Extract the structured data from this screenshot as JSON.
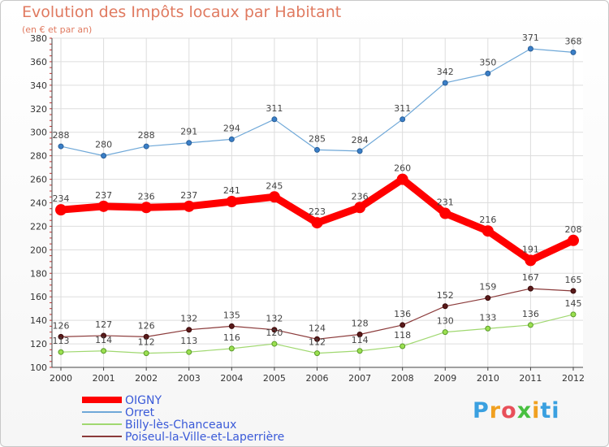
{
  "chart_data": {
    "type": "line",
    "title": "Evolution des Impôts locaux par Habitant",
    "subtitle": "(en € et par an)",
    "xlabel": "",
    "ylabel": "",
    "categories": [
      "2000",
      "2001",
      "2002",
      "2003",
      "2004",
      "2005",
      "2006",
      "2007",
      "2008",
      "2009",
      "2010",
      "2011",
      "2012"
    ],
    "ylim": [
      100,
      380
    ],
    "yticks": [
      100,
      120,
      140,
      160,
      180,
      200,
      220,
      240,
      260,
      280,
      300,
      320,
      340,
      360,
      380
    ],
    "grid": true,
    "legend_position": "bottom-left",
    "series": [
      {
        "name": "OIGNY",
        "color": "#ff0000",
        "values": [
          234,
          237,
          236,
          237,
          241,
          245,
          223,
          236,
          260,
          231,
          216,
          191,
          208
        ]
      },
      {
        "name": "Orret",
        "color": "#6fa8d8",
        "values": [
          288,
          280,
          288,
          291,
          294,
          311,
          285,
          284,
          311,
          342,
          350,
          371,
          368
        ]
      },
      {
        "name": "Billy-lès-Chanceaux",
        "color": "#a0d870",
        "values": [
          113,
          114,
          112,
          113,
          116,
          120,
          112,
          114,
          118,
          130,
          133,
          136,
          145
        ]
      },
      {
        "name": "Poiseul-la-Ville-et-Laperrière",
        "color": "#8b3a3a",
        "values": [
          126,
          127,
          126,
          132,
          135,
          132,
          124,
          128,
          136,
          152,
          159,
          167,
          165
        ]
      }
    ]
  },
  "logo_text": "Proxiti"
}
